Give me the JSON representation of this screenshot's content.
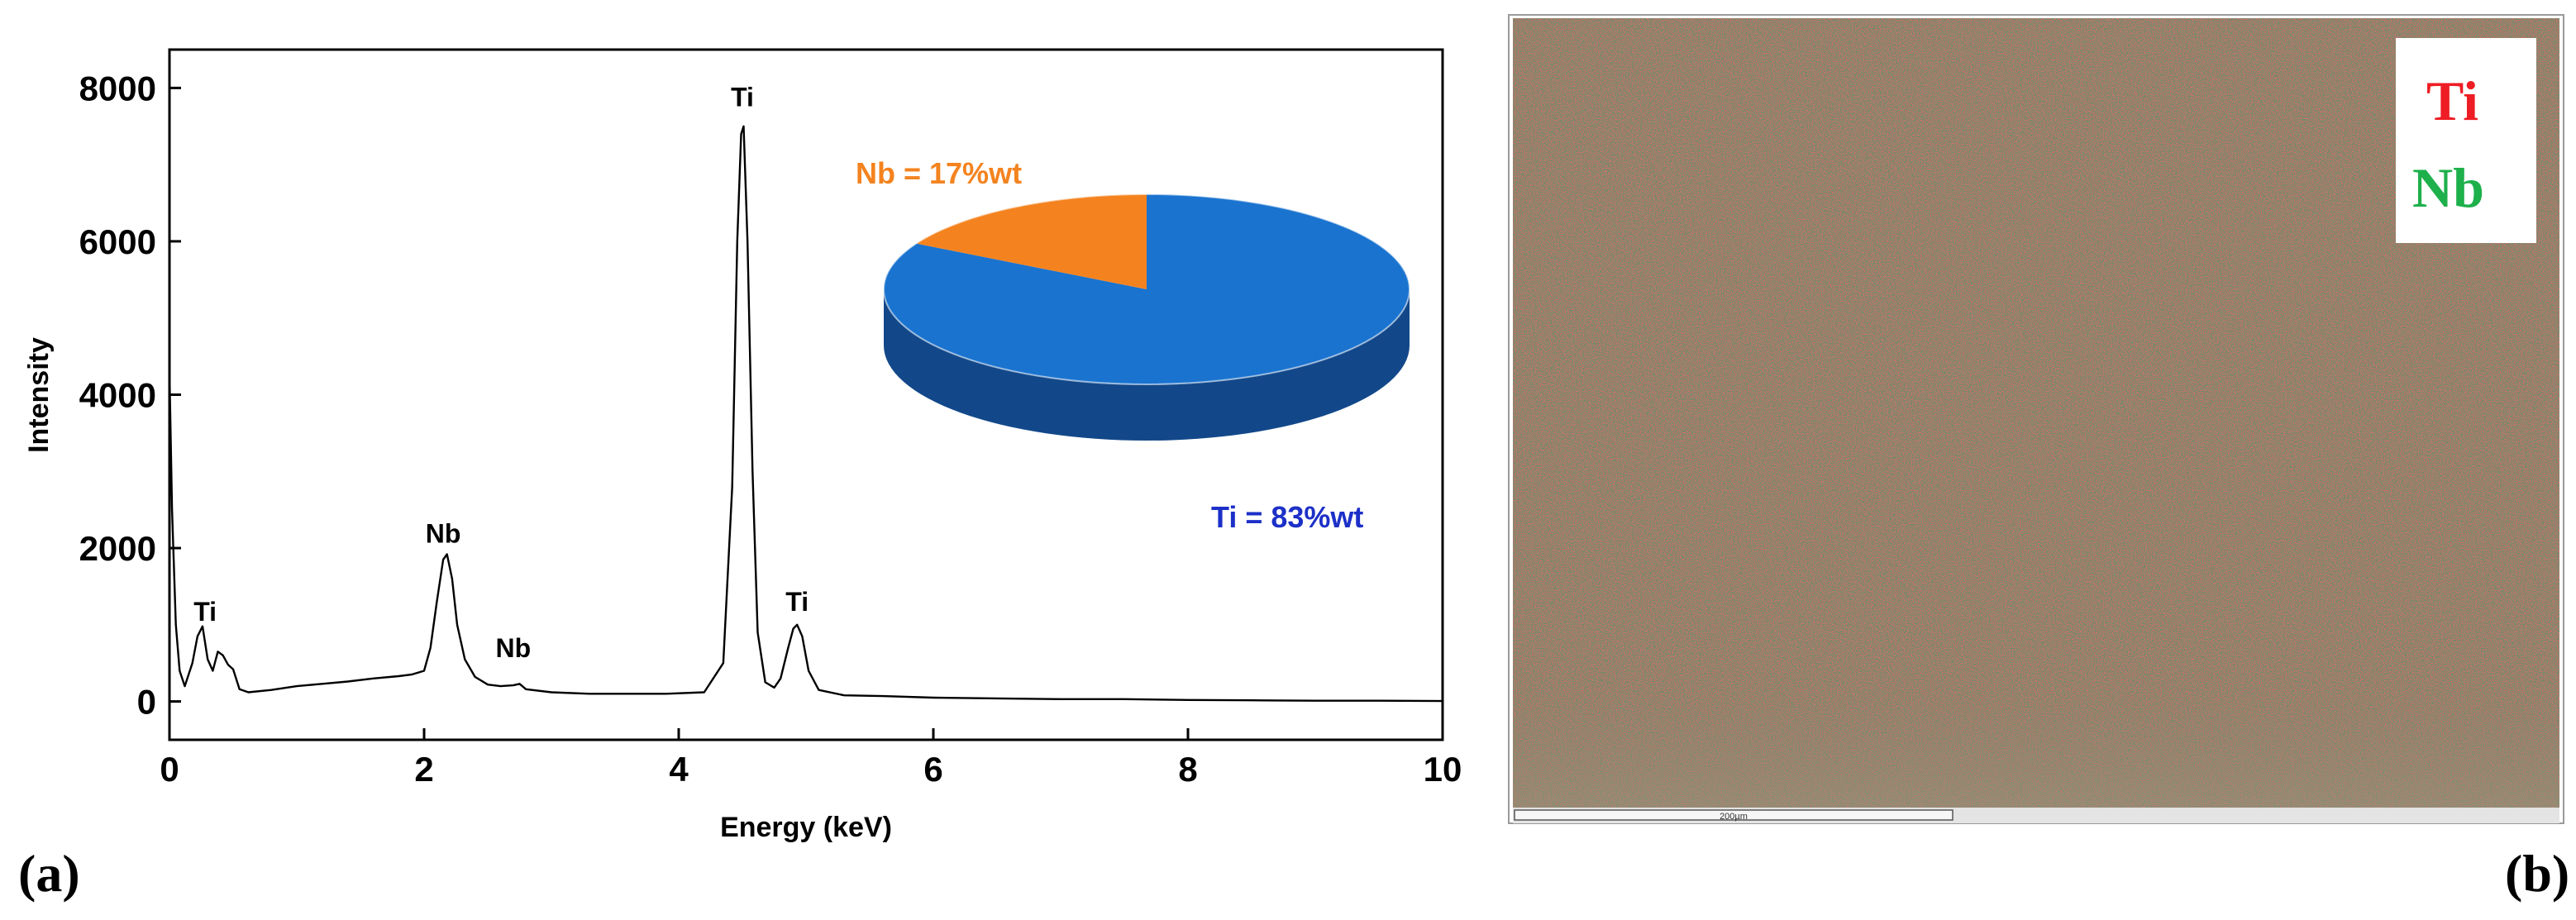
{
  "chart_data": [
    {
      "type": "line",
      "panel_label": "(a)",
      "xlabel": "Energy (keV)",
      "ylabel": "Intensity",
      "xlim": [
        0,
        10
      ],
      "ylim": [
        -500,
        8500
      ],
      "x_ticks": [
        0,
        2,
        4,
        6,
        8,
        10
      ],
      "y_ticks": [
        0,
        2000,
        4000,
        6000,
        8000
      ],
      "series": [
        {
          "x": [
            0.0,
            0.02,
            0.05,
            0.08,
            0.12,
            0.18,
            0.22,
            0.26,
            0.3,
            0.34,
            0.38,
            0.42,
            0.46,
            0.5,
            0.55,
            0.62,
            0.8,
            1.0,
            1.2,
            1.4,
            1.6,
            1.8,
            1.9,
            2.0,
            2.05,
            2.1,
            2.15,
            2.18,
            2.22,
            2.26,
            2.32,
            2.4,
            2.5,
            2.6,
            2.7,
            2.75,
            2.8,
            3.0,
            3.3,
            3.6,
            3.9,
            4.2,
            4.35,
            4.42,
            4.46,
            4.49,
            4.51,
            4.54,
            4.58,
            4.62,
            4.68,
            4.75,
            4.8,
            4.86,
            4.9,
            4.93,
            4.97,
            5.02,
            5.1,
            5.3,
            5.6,
            6.0,
            6.5,
            7.0,
            7.5,
            8.0,
            8.5,
            9.0,
            9.5,
            10.0
          ],
          "y": [
            4300,
            2500,
            1000,
            400,
            200,
            500,
            850,
            980,
            550,
            400,
            650,
            600,
            480,
            420,
            160,
            120,
            150,
            200,
            230,
            260,
            300,
            330,
            350,
            400,
            700,
            1300,
            1850,
            1920,
            1600,
            1000,
            550,
            320,
            220,
            200,
            210,
            230,
            160,
            120,
            100,
            100,
            100,
            120,
            500,
            2800,
            6000,
            7400,
            7500,
            6000,
            3000,
            900,
            250,
            180,
            300,
            700,
            950,
            1000,
            850,
            400,
            150,
            80,
            70,
            50,
            40,
            30,
            30,
            20,
            15,
            10,
            10,
            5
          ]
        }
      ],
      "annotations": [
        {
          "text": "Ti",
          "x": 0.28,
          "y": 1050
        },
        {
          "text": "Nb",
          "x": 2.15,
          "y": 2070
        },
        {
          "text": "Nb",
          "x": 2.7,
          "y": 580
        },
        {
          "text": "Ti",
          "x": 4.5,
          "y": 7760
        },
        {
          "text": "Ti",
          "x": 4.93,
          "y": 1180
        }
      ],
      "inset_pie": {
        "type": "pie",
        "slices": [
          {
            "label": "Ti = 83%wt",
            "value": 83,
            "color": "#1a73cf",
            "label_color": "#1c30c8"
          },
          {
            "label": "Nb = 17%wt",
            "value": 17,
            "color": "#f4831f",
            "label_color": "#f4831f"
          }
        ]
      }
    },
    {
      "type": "elemental_map",
      "panel_label": "(b)",
      "legend": [
        {
          "text": "Ti",
          "color": "#ee1c24"
        },
        {
          "text": "Nb",
          "color": "#1eb04b"
        }
      ],
      "scale_bar_text": "200µm"
    }
  ]
}
